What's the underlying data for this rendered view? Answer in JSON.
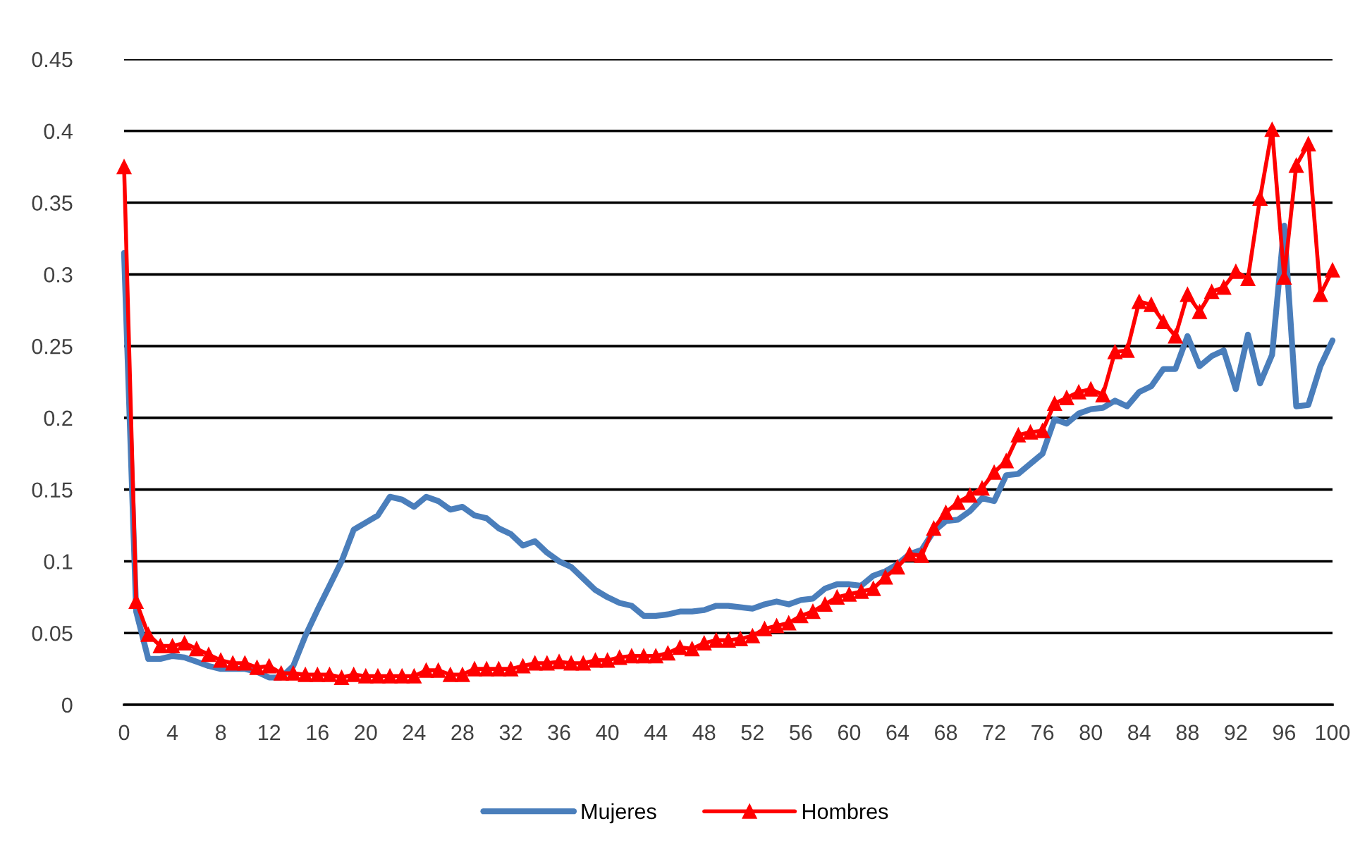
{
  "chart_data": {
    "type": "line",
    "x": [
      0,
      1,
      2,
      3,
      4,
      5,
      6,
      7,
      8,
      9,
      10,
      11,
      12,
      13,
      14,
      15,
      16,
      17,
      18,
      19,
      20,
      21,
      22,
      23,
      24,
      25,
      26,
      27,
      28,
      29,
      30,
      31,
      32,
      33,
      34,
      35,
      36,
      37,
      38,
      39,
      40,
      41,
      42,
      43,
      44,
      45,
      46,
      47,
      48,
      49,
      50,
      51,
      52,
      53,
      54,
      55,
      56,
      57,
      58,
      59,
      60,
      61,
      62,
      63,
      64,
      65,
      66,
      67,
      68,
      69,
      70,
      71,
      72,
      73,
      74,
      75,
      76,
      77,
      78,
      79,
      80,
      81,
      82,
      83,
      84,
      85,
      86,
      87,
      88,
      89,
      90,
      91,
      92,
      93,
      94,
      95,
      96,
      97,
      98,
      99,
      100
    ],
    "xlim": [
      0,
      100
    ],
    "xticks": [
      0,
      4,
      8,
      12,
      16,
      20,
      24,
      28,
      32,
      36,
      40,
      44,
      48,
      52,
      56,
      60,
      64,
      68,
      72,
      76,
      80,
      84,
      88,
      92,
      96,
      100
    ],
    "ylim": [
      0,
      0.45
    ],
    "yticks": [
      0,
      0.05,
      0.1,
      0.15,
      0.2,
      0.25,
      0.3,
      0.35,
      0.4,
      0.45
    ],
    "grid": "y",
    "legend": "bottom",
    "series": [
      {
        "name": "Mujeres",
        "color": "#4a7ebb",
        "marker": "none",
        "values": [
          0.315,
          0.065,
          0.032,
          0.032,
          0.034,
          0.033,
          0.03,
          0.027,
          0.025,
          0.025,
          0.025,
          0.023,
          0.019,
          0.019,
          0.027,
          0.048,
          0.066,
          0.083,
          0.1,
          0.122,
          0.127,
          0.132,
          0.145,
          0.143,
          0.138,
          0.145,
          0.142,
          0.136,
          0.138,
          0.132,
          0.13,
          0.123,
          0.119,
          0.111,
          0.114,
          0.106,
          0.1,
          0.096,
          0.088,
          0.08,
          0.075,
          0.071,
          0.069,
          0.062,
          0.062,
          0.063,
          0.065,
          0.065,
          0.066,
          0.069,
          0.069,
          0.068,
          0.067,
          0.07,
          0.072,
          0.07,
          0.073,
          0.074,
          0.081,
          0.084,
          0.084,
          0.083,
          0.09,
          0.093,
          0.098,
          0.105,
          0.108,
          0.121,
          0.128,
          0.129,
          0.135,
          0.144,
          0.142,
          0.16,
          0.161,
          0.168,
          0.175,
          0.199,
          0.196,
          0.203,
          0.206,
          0.207,
          0.212,
          0.208,
          0.218,
          0.222,
          0.234,
          0.234,
          0.257,
          0.236,
          0.243,
          0.247,
          0.22,
          0.258,
          0.224,
          0.244,
          0.334,
          0.208,
          0.209,
          0.236,
          0.254
        ]
      },
      {
        "name": "Hombres",
        "color": "#ff0000",
        "marker": "triangle",
        "values": [
          0.375,
          0.072,
          0.049,
          0.041,
          0.041,
          0.043,
          0.039,
          0.035,
          0.031,
          0.029,
          0.029,
          0.026,
          0.027,
          0.022,
          0.022,
          0.021,
          0.021,
          0.021,
          0.019,
          0.021,
          0.02,
          0.02,
          0.02,
          0.02,
          0.02,
          0.024,
          0.024,
          0.021,
          0.021,
          0.025,
          0.025,
          0.025,
          0.025,
          0.027,
          0.029,
          0.029,
          0.03,
          0.029,
          0.029,
          0.031,
          0.031,
          0.033,
          0.034,
          0.034,
          0.034,
          0.036,
          0.04,
          0.039,
          0.043,
          0.045,
          0.045,
          0.046,
          0.048,
          0.053,
          0.055,
          0.057,
          0.062,
          0.065,
          0.07,
          0.075,
          0.077,
          0.079,
          0.081,
          0.089,
          0.096,
          0.105,
          0.104,
          0.123,
          0.134,
          0.141,
          0.146,
          0.151,
          0.162,
          0.17,
          0.188,
          0.19,
          0.191,
          0.21,
          0.214,
          0.218,
          0.22,
          0.216,
          0.246,
          0.247,
          0.281,
          0.279,
          0.267,
          0.257,
          0.286,
          0.274,
          0.288,
          0.291,
          0.302,
          0.297,
          0.353,
          0.401,
          0.298,
          0.376,
          0.391,
          0.286,
          0.303
        ]
      }
    ]
  }
}
